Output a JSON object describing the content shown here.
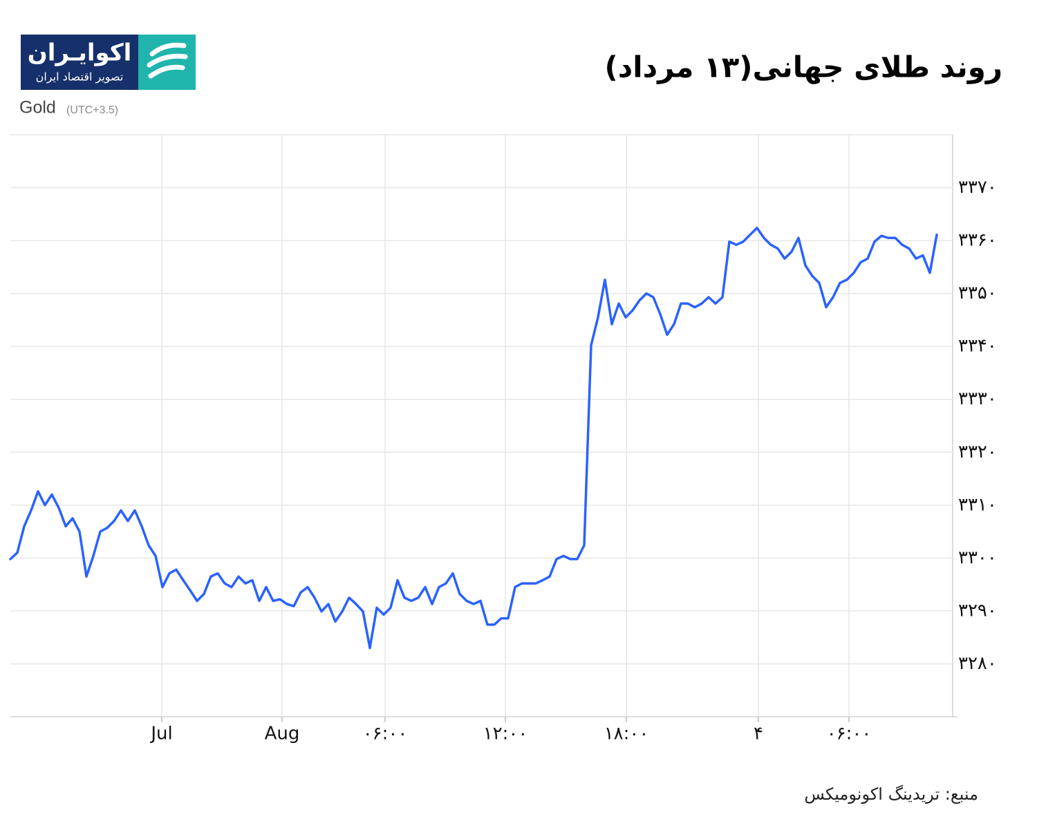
{
  "header": {
    "title": "روند طلای جهانی(۱۳ مرداد)"
  },
  "logo": {
    "name": "اکوایـران",
    "tagline": "تصویر اقتصاد ایران"
  },
  "chart_data": {
    "type": "line",
    "subtitle": "Gold",
    "timezone": "(UTC+3.5)",
    "color": "#2962ff",
    "grid": true,
    "xlim": [
      0,
      136.3
    ],
    "xticks": [
      {
        "value": 21.9,
        "label": "Jul"
      },
      {
        "value": 39.3,
        "label": "Aug"
      },
      {
        "value": 54.2,
        "label": "۰۶:۰۰"
      },
      {
        "value": 71.6,
        "label": "۱۲:۰۰"
      },
      {
        "value": 89.1,
        "label": "۱۸:۰۰"
      },
      {
        "value": 108.2,
        "label": "۴"
      },
      {
        "value": 121.3,
        "label": "۰۶:۰۰"
      }
    ],
    "ylim": [
      3270,
      3380
    ],
    "yticks": [
      {
        "value": 3280,
        "label": "۳۲۸۰"
      },
      {
        "value": 3290,
        "label": "۳۲۹۰"
      },
      {
        "value": 3300,
        "label": "۳۳۰۰"
      },
      {
        "value": 3310,
        "label": "۳۳۱۰"
      },
      {
        "value": 3320,
        "label": "۳۳۲۰"
      },
      {
        "value": 3330,
        "label": "۳۳۳۰"
      },
      {
        "value": 3340,
        "label": "۳۳۴۰"
      },
      {
        "value": 3350,
        "label": "۳۳۵۰"
      },
      {
        "value": 3360,
        "label": "۳۳۶۰"
      },
      {
        "value": 3370,
        "label": "۳۳۷۰"
      }
    ],
    "values": [
      3299.8,
      3301,
      3306,
      3309,
      3312.6,
      3310,
      3312,
      3309.5,
      3306,
      3307.5,
      3305,
      3296.5,
      3300.4,
      3305,
      3305.7,
      3307,
      3309,
      3307,
      3309,
      3306,
      3302.4,
      3300.4,
      3294.5,
      3297.1,
      3297.8,
      3295.8,
      3293.9,
      3291.9,
      3293.2,
      3296.5,
      3297.1,
      3295.2,
      3294.5,
      3296.5,
      3295.2,
      3295.8,
      3291.9,
      3294.5,
      3291.9,
      3292.2,
      3291.3,
      3290.9,
      3293.5,
      3294.5,
      3292.5,
      3289.9,
      3291.3,
      3288,
      3289.9,
      3292.5,
      3291.3,
      3289.9,
      3283,
      3290.6,
      3289.3,
      3290.6,
      3295.8,
      3292.5,
      3291.9,
      3292.5,
      3294.5,
      3291.3,
      3294.5,
      3295.2,
      3297.1,
      3293.2,
      3291.9,
      3291.3,
      3291.9,
      3287.4,
      3287.4,
      3288.6,
      3288.6,
      3294.5,
      3295.2,
      3295.2,
      3295.2,
      3295.8,
      3296.5,
      3299.8,
      3300.4,
      3299.8,
      3299.8,
      3302.4,
      3340.2,
      3345.5,
      3352.6,
      3344.2,
      3348.1,
      3345.5,
      3346.8,
      3348.7,
      3350,
      3349.3,
      3346.1,
      3342.2,
      3344.2,
      3348.1,
      3348.1,
      3347.4,
      3348.1,
      3349.3,
      3348.1,
      3349.3,
      3359.8,
      3359.2,
      3359.8,
      3361.1,
      3362.4,
      3360.5,
      3359.2,
      3358.5,
      3356.6,
      3357.9,
      3360.5,
      3355.3,
      3353.3,
      3352,
      3347.4,
      3349.3,
      3352,
      3352.6,
      3353.9,
      3355.9,
      3356.6,
      3359.8,
      3360.9,
      3360.5,
      3360.5,
      3359.2,
      3358.5,
      3356.6,
      3357.2,
      3353.9,
      3361.1
    ]
  },
  "footer": {
    "source": "منبع: تریدینگ اکونومیکس"
  }
}
